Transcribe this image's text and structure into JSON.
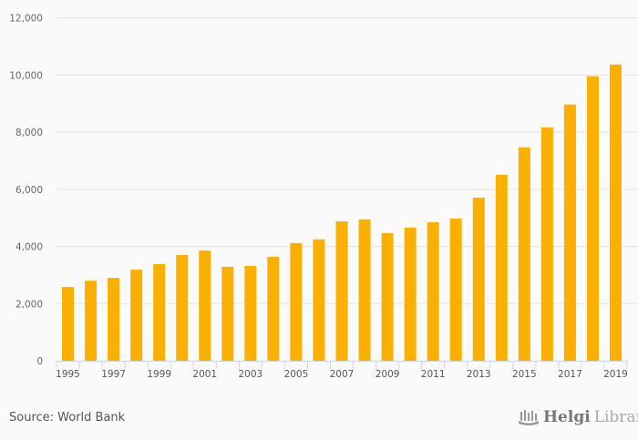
{
  "chart_data": {
    "type": "bar",
    "title": "",
    "xlabel": "",
    "ylabel": "",
    "categories": [
      "1995",
      "1996",
      "1997",
      "1998",
      "1999",
      "2000",
      "2001",
      "2002",
      "2003",
      "2004",
      "2005",
      "2006",
      "2007",
      "2008",
      "2009",
      "2010",
      "2011",
      "2012",
      "2013",
      "2014",
      "2015",
      "2016",
      "2017",
      "2018",
      "2019"
    ],
    "values": [
      2580,
      2800,
      2900,
      3190,
      3380,
      3700,
      3860,
      3290,
      3320,
      3640,
      4120,
      4250,
      4880,
      4950,
      4470,
      4660,
      4850,
      4980,
      5710,
      6510,
      7470,
      8170,
      8970,
      9960,
      10370
    ],
    "x_tick_labels": [
      "1995",
      "1997",
      "1999",
      "2001",
      "2003",
      "2005",
      "2007",
      "2009",
      "2011",
      "2013",
      "2015",
      "2017",
      "2019"
    ],
    "y_tick_labels": [
      "0",
      "2,000",
      "4,000",
      "6,000",
      "8,000",
      "10,000",
      "12,000"
    ],
    "y_ticks": [
      0,
      2000,
      4000,
      6000,
      8000,
      10000,
      12000
    ],
    "ylim": [
      0,
      12000
    ],
    "grid": true,
    "bar_color": "#f9b000"
  },
  "footer": {
    "source": "Source: World Bank",
    "logo_bold": "Helgi",
    "logo_light": "Library."
  }
}
